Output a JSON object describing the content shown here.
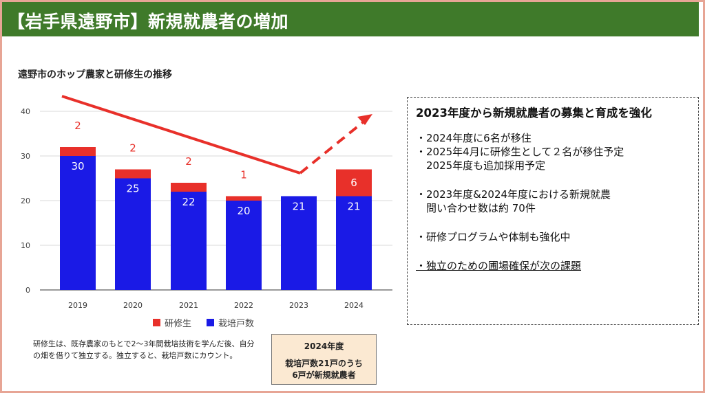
{
  "header": {
    "title": "【岩手県遠野市】新規就農者の増加"
  },
  "chart_data": {
    "type": "bar",
    "stacked": true,
    "title": "遠野市のホップ農家と研修生の推移",
    "categories": [
      "2019",
      "2020",
      "2021",
      "2022",
      "2023",
      "2024"
    ],
    "series": [
      {
        "name": "栽培戸数",
        "color": "#1a1ae6",
        "values": [
          30,
          25,
          22,
          20,
          21,
          21
        ]
      },
      {
        "name": "研修生",
        "color": "#e8302a",
        "values": [
          2,
          2,
          2,
          1,
          0,
          6
        ]
      }
    ],
    "data_labels": {
      "栽培戸数": [
        "30",
        "25",
        "22",
        "20",
        "21",
        "21"
      ],
      "研修生": [
        "2",
        "2",
        "2",
        "1",
        "",
        "6"
      ]
    },
    "yticks": [
      "0",
      "10",
      "20",
      "30",
      "40"
    ],
    "ylim": [
      0,
      45
    ],
    "grid": true,
    "legend": "bottom",
    "trend_color": "#e8302a"
  },
  "legend": {
    "trainee": "研修生",
    "farms": "栽培戸数"
  },
  "footnote": "研修生は、既存農家のもとで2～3年間栽培技術を学んだ後、自分の畑を借りて独立する。独立すると、栽培戸数にカウント。",
  "callout": {
    "title": "2024年度",
    "line1": "栽培戸数21戸のうち",
    "line2": "6戸が新規就農者"
  },
  "info": {
    "heading": "2023年度から新規就農者の募集と育成を強化",
    "b1": "・2024年度に6名が移住",
    "b2": "・2025年4月に研修生として２名が移住予定",
    "b2b": "　2025年度も追加採用予定",
    "b3": "・2023年度&2024年度における新規就農",
    "b3b": "　問い合わせ数は約 70件",
    "b4": "・研修プログラムや体制も強化中",
    "b5": "・独立のための圃場確保が次の課題"
  }
}
